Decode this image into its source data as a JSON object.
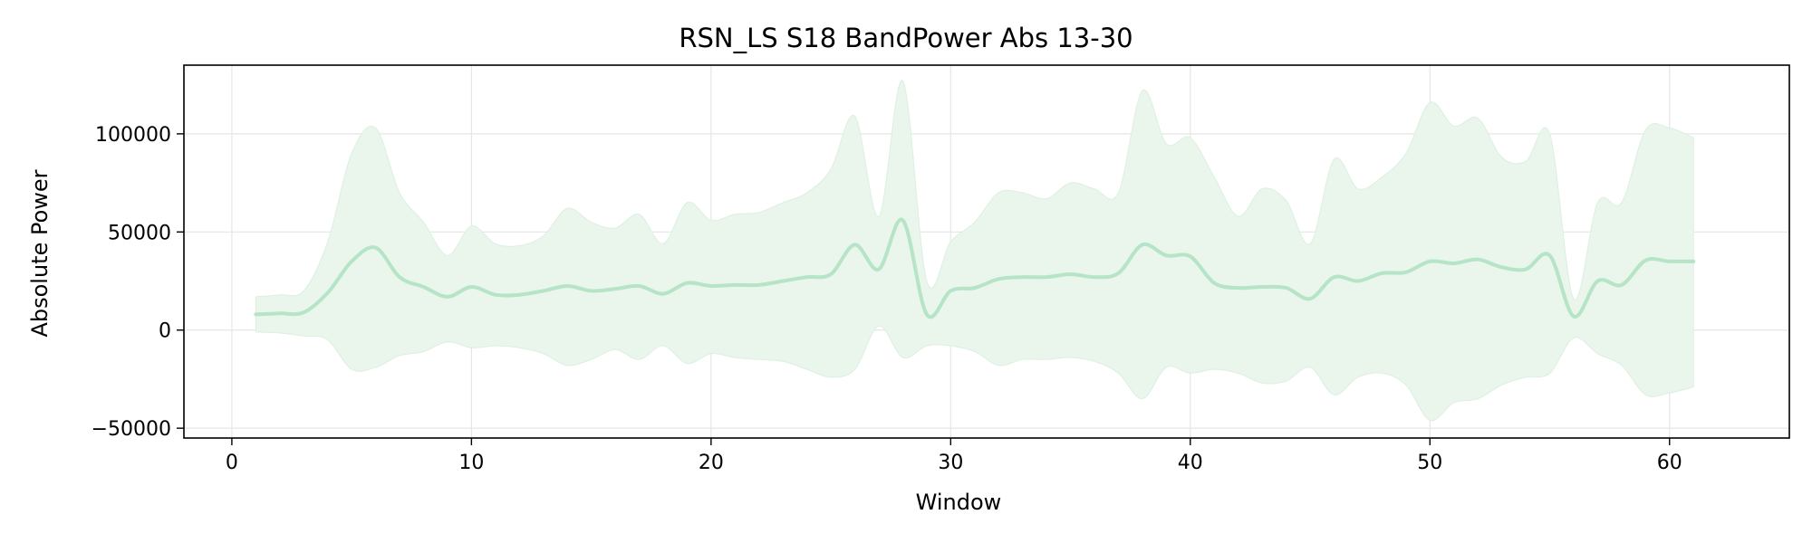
{
  "chart_data": {
    "type": "area",
    "title": "RSN_LS S18 BandPower Abs 13-30",
    "xlabel": "Window",
    "ylabel": "Absolute Power",
    "xlim": [
      -2,
      65
    ],
    "ylim": [
      -55000,
      135000
    ],
    "x_ticks": [
      0,
      10,
      20,
      30,
      40,
      50,
      60
    ],
    "y_ticks": [
      -50000,
      0,
      50000,
      100000
    ],
    "x_tick_labels": [
      "0",
      "10",
      "20",
      "30",
      "40",
      "50",
      "60"
    ],
    "y_tick_labels": [
      "−50000",
      "0",
      "50000",
      "100000"
    ],
    "grid": true,
    "legend": "none",
    "colors": {
      "line": "#b5e4c6",
      "band": "#eaf5ec",
      "band_edge": "#dcefe2",
      "grid": "#e6e6e6",
      "axis": "#000000"
    },
    "series": [
      {
        "mean": {
          "x": [
            1,
            2,
            3,
            4,
            5,
            6,
            7,
            8,
            9,
            10,
            11,
            12,
            13,
            14,
            15,
            16,
            17,
            18,
            19,
            20,
            21,
            22,
            23,
            24,
            25,
            26,
            27,
            28,
            29,
            30,
            31,
            32,
            33,
            34,
            35,
            36,
            37,
            38,
            39,
            40,
            41,
            42,
            43,
            44,
            45,
            46,
            47,
            48,
            49,
            50,
            51,
            52,
            53,
            54,
            55,
            56,
            57,
            58,
            59,
            60,
            61
          ],
          "y": [
            8000,
            8500,
            9000,
            19000,
            35000,
            42000,
            27000,
            22000,
            17000,
            22000,
            18000,
            18000,
            20000,
            22500,
            20000,
            21000,
            22500,
            18500,
            24000,
            22500,
            23000,
            23000,
            25000,
            27000,
            28500,
            43500,
            31000,
            56000,
            8000,
            20000,
            21500,
            26000,
            27000,
            27000,
            28500,
            27000,
            29000,
            43500,
            38000,
            37500,
            24000,
            21500,
            22000,
            21500,
            16000,
            27000,
            25000,
            29000,
            29500,
            35000,
            34000,
            36000,
            32000,
            31000,
            38000,
            7000,
            25000,
            23000,
            35500,
            35000,
            35000
          ]
        },
        "upper": {
          "x": [
            1,
            2,
            3,
            4,
            5,
            6,
            7,
            8,
            9,
            10,
            11,
            12,
            13,
            14,
            15,
            16,
            17,
            18,
            19,
            20,
            21,
            22,
            23,
            24,
            25,
            26,
            27,
            28,
            29,
            30,
            31,
            32,
            33,
            34,
            35,
            36,
            37,
            38,
            39,
            40,
            41,
            42,
            43,
            44,
            45,
            46,
            47,
            48,
            49,
            50,
            51,
            52,
            53,
            54,
            55,
            56,
            57,
            58,
            59,
            60,
            61
          ],
          "y": [
            17000,
            18000,
            20000,
            45000,
            90000,
            103000,
            70000,
            55000,
            38000,
            53000,
            44000,
            43000,
            48000,
            62000,
            55000,
            52000,
            59000,
            44000,
            65000,
            56000,
            59000,
            60000,
            65000,
            70000,
            82000,
            109000,
            58000,
            127000,
            25000,
            45000,
            55000,
            70000,
            70000,
            67000,
            75000,
            72000,
            70000,
            122000,
            95000,
            98000,
            78000,
            58000,
            72000,
            66000,
            44000,
            87000,
            72000,
            78000,
            90000,
            116000,
            104000,
            108000,
            88000,
            86000,
            100000,
            16000,
            65000,
            65000,
            102000,
            103000,
            98000
          ]
        },
        "lower": {
          "x": [
            1,
            2,
            3,
            4,
            5,
            6,
            7,
            8,
            9,
            10,
            11,
            12,
            13,
            14,
            15,
            16,
            17,
            18,
            19,
            20,
            21,
            22,
            23,
            24,
            25,
            26,
            27,
            28,
            29,
            30,
            31,
            32,
            33,
            34,
            35,
            36,
            37,
            38,
            39,
            40,
            41,
            42,
            43,
            44,
            45,
            46,
            47,
            48,
            49,
            50,
            51,
            52,
            53,
            54,
            55,
            56,
            57,
            58,
            59,
            60,
            61
          ],
          "y": [
            -1000,
            -1500,
            -3000,
            -5000,
            -20000,
            -19000,
            -13000,
            -11000,
            -6000,
            -9000,
            -8000,
            -9000,
            -12000,
            -18000,
            -15000,
            -10000,
            -15000,
            -8000,
            -17000,
            -12000,
            -14000,
            -15000,
            -16000,
            -20000,
            -24000,
            -20000,
            2000,
            -14000,
            -8000,
            -8000,
            -11000,
            -18000,
            -15000,
            -15000,
            -14000,
            -16000,
            -22000,
            -35000,
            -19000,
            -22000,
            -20000,
            -22000,
            -27000,
            -26000,
            -19000,
            -33000,
            -24000,
            -22000,
            -28000,
            -46000,
            -37000,
            -35000,
            -28000,
            -24000,
            -22000,
            -4000,
            -12000,
            -18000,
            -33000,
            -32000,
            -29000
          ]
        }
      }
    ]
  }
}
